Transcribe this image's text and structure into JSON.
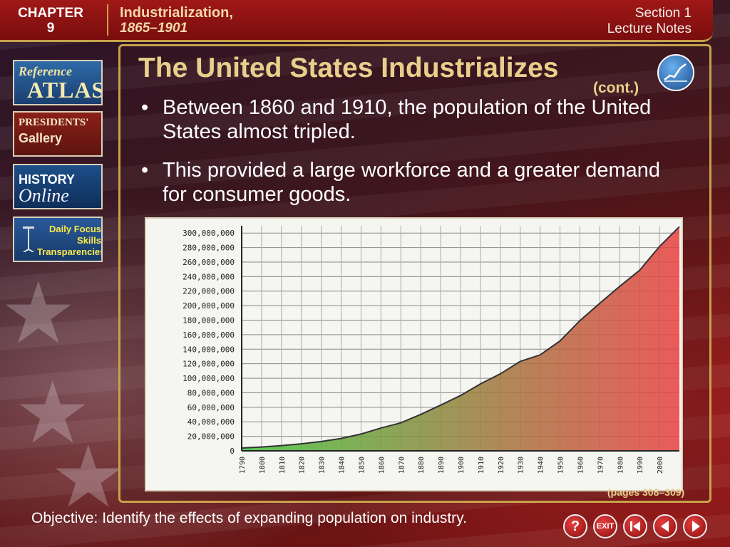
{
  "header": {
    "chapter_label": "CHAPTER",
    "chapter_number": "9",
    "topic_title": "Industrialization,",
    "topic_years": "1865–1901",
    "section_label": "Section 1",
    "section_subtitle": "Lecture Notes",
    "color_bar": "#8e1212",
    "color_gold": "#c8a24a"
  },
  "sidebar": {
    "items": [
      {
        "line1": "Reference",
        "line2": "ATLAS"
      },
      {
        "line1": "PRESIDENTS'",
        "line2": "Gallery"
      },
      {
        "line1": "HISTORY",
        "line2": "Online"
      },
      {
        "line1": "Daily Focus Skills Transparencies"
      }
    ]
  },
  "main": {
    "title": "The United States Industrializes",
    "continued": "(cont.)",
    "bullets": [
      "Between 1860 and 1910, the population of the United States almost tripled.",
      "This provided a large workforce and a greater demand for consumer goods."
    ],
    "pages_ref": "(pages 308–309)",
    "objective": "Objective: Identify the effects of expanding population on industry."
  },
  "nav": {
    "help": "?",
    "exit": "EXIT",
    "first": "first-icon",
    "back": "back-icon",
    "next": "next-icon"
  },
  "chart_data": {
    "type": "area",
    "title": "",
    "xlabel": "",
    "ylabel": "",
    "x": [
      1790,
      1800,
      1810,
      1820,
      1830,
      1840,
      1850,
      1860,
      1870,
      1880,
      1890,
      1900,
      1910,
      1920,
      1930,
      1940,
      1950,
      1960,
      1970,
      1980,
      1990,
      2000,
      2010
    ],
    "y": [
      3929214,
      5308483,
      7239881,
      9638453,
      12866020,
      17069453,
      23191876,
      31443321,
      38558371,
      50189209,
      62979766,
      76212168,
      92228496,
      106021537,
      123202624,
      132164569,
      151325798,
      179323175,
      203302031,
      226545805,
      248709873,
      281421906,
      308745538
    ],
    "y_ticks": [
      "0",
      "20,000,000",
      "40,000,000",
      "60,000,000",
      "80,000,000",
      "100,000,000",
      "120,000,000",
      "140,000,000",
      "160,000,000",
      "180,000,000",
      "200,000,000",
      "220,000,000",
      "240,000,000",
      "260,000,000",
      "280,000,000",
      "300,000,000"
    ],
    "x_ticks": [
      "1790",
      "1800",
      "1810",
      "1820",
      "1830",
      "1840",
      "1850",
      "1860",
      "1870",
      "1880",
      "1890",
      "1900",
      "1910",
      "1920",
      "1930",
      "1940",
      "1950",
      "1960",
      "1970",
      "1980",
      "1990",
      "2000"
    ],
    "ylim": [
      0,
      310000000
    ],
    "xlim": [
      1790,
      2010
    ],
    "grid": true,
    "fill_gradient": [
      "#3fc43a",
      "#e84040"
    ]
  }
}
